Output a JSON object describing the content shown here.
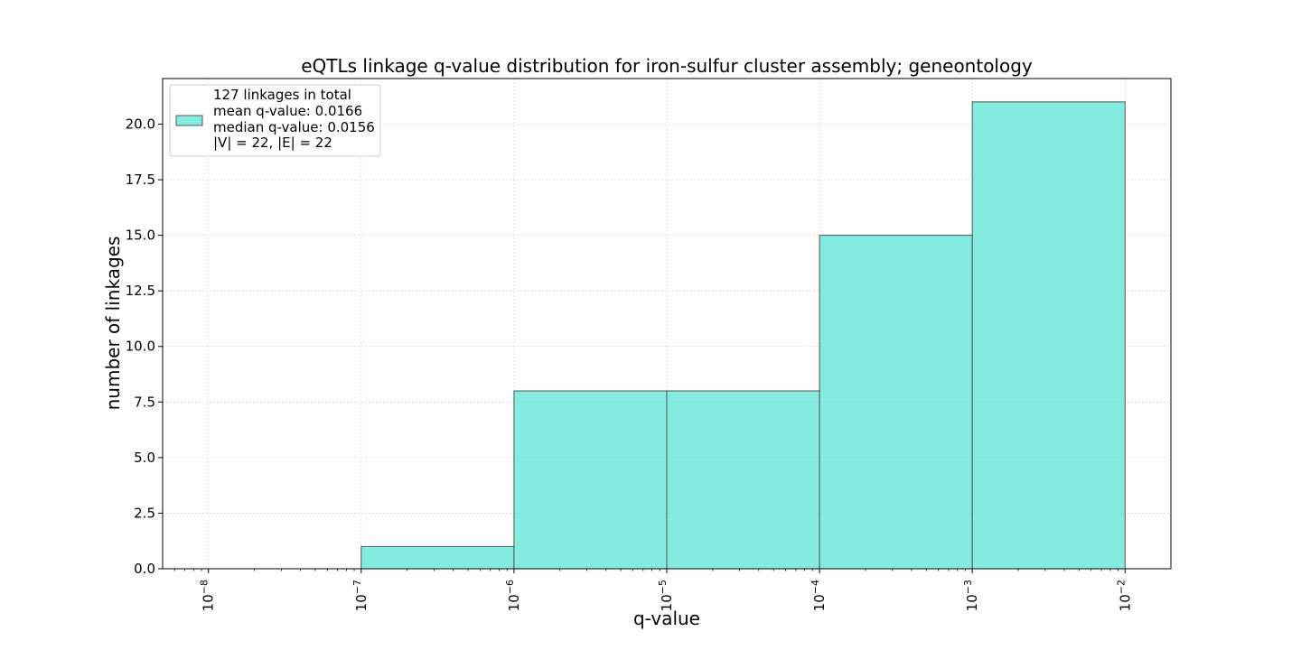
{
  "chart_data": {
    "type": "bar",
    "title": "eQTLs linkage q-value distribution for iron-sulfur cluster assembly; geneontology",
    "xlabel": "q-value",
    "ylabel": "number of linkages",
    "xscale": "log",
    "xlim_exponents": [
      -8.3,
      -1.7
    ],
    "ylim": [
      0,
      22.05
    ],
    "x_tick_exponents": [
      -8,
      -7,
      -6,
      -5,
      -4,
      -3,
      -2
    ],
    "y_ticks": [
      0.0,
      2.5,
      5.0,
      7.5,
      10.0,
      12.5,
      15.0,
      17.5,
      20.0
    ],
    "y_tick_labels": [
      "0.0",
      "2.5",
      "5.0",
      "7.5",
      "10.0",
      "12.5",
      "15.0",
      "17.5",
      "20.0"
    ],
    "bins": [
      {
        "from": "1e-8",
        "to": "1e-7",
        "count": 0
      },
      {
        "from": "1e-7",
        "to": "1e-6",
        "count": 1
      },
      {
        "from": "1e-6",
        "to": "1e-5",
        "count": 8
      },
      {
        "from": "1e-5",
        "to": "1e-4",
        "count": 8
      },
      {
        "from": "1e-4",
        "to": "1e-3",
        "count": 15
      },
      {
        "from": "1e-3",
        "to": "1e-2",
        "count": 21
      }
    ],
    "grid": true,
    "legend_position": "top-left",
    "legend_lines": [
      "127 linkages in total",
      "mean q-value: 0.0166",
      "median q-value: 0.0156",
      "|V| = 22, |E| = 22"
    ],
    "colors": {
      "bar_fill": "#40E0D0",
      "bar_edge": "#555555",
      "grid": "#cccccc"
    }
  }
}
